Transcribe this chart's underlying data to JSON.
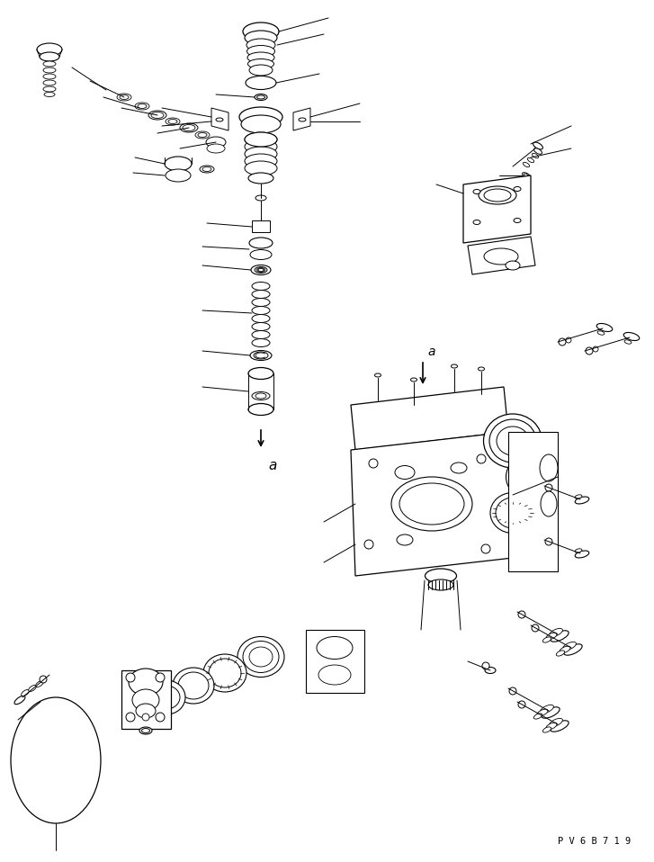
{
  "bg_color": "#ffffff",
  "line_color": "#000000",
  "fig_width": 7.27,
  "fig_height": 9.58,
  "dpi": 100,
  "watermark": "P V 6 B 7 1 9"
}
